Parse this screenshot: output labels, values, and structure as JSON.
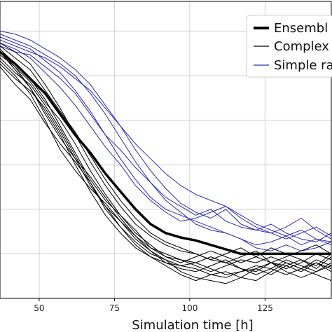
{
  "chart_data": {
    "type": "line",
    "title": "",
    "xlabel": "Simulation time [h]",
    "ylabel": "",
    "xlim": [
      37,
      147
    ],
    "ylim": [
      0,
      1
    ],
    "x_ticks": [
      50,
      75,
      100,
      125
    ],
    "x_tick_labels": [
      "50",
      "75",
      "100",
      "125"
    ],
    "grid": true,
    "legend": {
      "placement": "top-right",
      "entries": [
        {
          "label": "Ensembl",
          "color": "#000000",
          "style": "thick"
        },
        {
          "label": "Complex",
          "color": "#000000",
          "style": "thin"
        },
        {
          "label": "Simple ra",
          "color": "#2a2ab5",
          "style": "thin"
        }
      ]
    },
    "colors": {
      "ensemble": "#000000",
      "complex": "#000000",
      "simple": "#2a2ab5",
      "grid": "#d0d0d0"
    },
    "x": [
      37,
      42,
      47,
      52,
      57,
      62,
      67,
      72,
      77,
      82,
      87,
      92,
      97,
      102,
      107,
      112,
      117,
      122,
      127,
      132,
      137,
      142,
      147
    ],
    "ensemble": {
      "name": "Ensembl",
      "values": [
        0.83,
        0.79,
        0.74,
        0.69,
        0.62,
        0.55,
        0.49,
        0.42,
        0.36,
        0.3,
        0.25,
        0.22,
        0.205,
        0.195,
        0.18,
        0.165,
        0.15,
        0.15,
        0.15,
        0.15,
        0.15,
        0.15,
        0.15
      ]
    },
    "complex_series": [
      {
        "values": [
          0.83,
          0.77,
          0.71,
          0.63,
          0.55,
          0.45,
          0.36,
          0.28,
          0.22,
          0.17,
          0.14,
          0.12,
          0.11,
          0.1,
          0.08,
          0.07,
          0.09,
          0.1,
          0.08,
          0.11,
          0.09,
          0.12,
          0.1
        ]
      },
      {
        "values": [
          0.8,
          0.75,
          0.69,
          0.6,
          0.5,
          0.43,
          0.37,
          0.32,
          0.26,
          0.21,
          0.16,
          0.12,
          0.1,
          0.09,
          0.11,
          0.13,
          0.1,
          0.08,
          0.1,
          0.13,
          0.11,
          0.09,
          0.12
        ]
      },
      {
        "values": [
          0.84,
          0.79,
          0.74,
          0.67,
          0.58,
          0.49,
          0.4,
          0.33,
          0.28,
          0.23,
          0.17,
          0.15,
          0.13,
          0.12,
          0.14,
          0.12,
          0.1,
          0.09,
          0.12,
          0.11,
          0.13,
          0.1,
          0.14
        ]
      },
      {
        "values": [
          0.86,
          0.83,
          0.79,
          0.72,
          0.64,
          0.55,
          0.46,
          0.38,
          0.31,
          0.25,
          0.21,
          0.18,
          0.16,
          0.15,
          0.13,
          0.12,
          0.14,
          0.16,
          0.12,
          0.1,
          0.12,
          0.15,
          0.13
        ]
      },
      {
        "values": [
          0.78,
          0.72,
          0.67,
          0.59,
          0.52,
          0.46,
          0.39,
          0.31,
          0.24,
          0.19,
          0.15,
          0.13,
          0.09,
          0.07,
          0.06,
          0.05,
          0.07,
          0.1,
          0.12,
          0.09,
          0.07,
          0.09,
          0.11
        ]
      },
      {
        "values": [
          0.82,
          0.78,
          0.73,
          0.66,
          0.6,
          0.52,
          0.43,
          0.35,
          0.28,
          0.22,
          0.18,
          0.14,
          0.12,
          0.14,
          0.16,
          0.14,
          0.12,
          0.14,
          0.17,
          0.15,
          0.13,
          0.11,
          0.15
        ]
      },
      {
        "values": [
          0.81,
          0.76,
          0.72,
          0.65,
          0.57,
          0.48,
          0.39,
          0.3,
          0.24,
          0.18,
          0.14,
          0.11,
          0.08,
          0.06,
          0.08,
          0.09,
          0.07,
          0.06,
          0.09,
          0.12,
          0.1,
          0.08,
          0.06
        ]
      },
      {
        "values": [
          0.85,
          0.81,
          0.77,
          0.7,
          0.63,
          0.56,
          0.48,
          0.4,
          0.33,
          0.27,
          0.22,
          0.19,
          0.17,
          0.15,
          0.13,
          0.15,
          0.17,
          0.14,
          0.12,
          0.14,
          0.16,
          0.18,
          0.15
        ]
      },
      {
        "values": [
          0.79,
          0.74,
          0.7,
          0.64,
          0.56,
          0.47,
          0.38,
          0.31,
          0.26,
          0.2,
          0.16,
          0.13,
          0.11,
          0.12,
          0.1,
          0.08,
          0.09,
          0.11,
          0.1,
          0.08,
          0.1,
          0.12,
          0.09
        ]
      },
      {
        "values": [
          0.83,
          0.78,
          0.71,
          0.62,
          0.54,
          0.47,
          0.41,
          0.34,
          0.27,
          0.21,
          0.17,
          0.14,
          0.13,
          0.11,
          0.09,
          0.11,
          0.13,
          0.12,
          0.14,
          0.12,
          0.1,
          0.13,
          0.11
        ]
      }
    ],
    "simple_series": [
      {
        "values": [
          0.88,
          0.86,
          0.84,
          0.8,
          0.76,
          0.7,
          0.63,
          0.55,
          0.47,
          0.4,
          0.34,
          0.3,
          0.28,
          0.26,
          0.24,
          0.22,
          0.2,
          0.18,
          0.19,
          0.21,
          0.18,
          0.2,
          0.19
        ]
      },
      {
        "values": [
          0.9,
          0.89,
          0.87,
          0.84,
          0.81,
          0.77,
          0.72,
          0.65,
          0.58,
          0.5,
          0.43,
          0.37,
          0.32,
          0.29,
          0.27,
          0.3,
          0.25,
          0.23,
          0.22,
          0.2,
          0.22,
          0.24,
          0.21
        ]
      },
      {
        "values": [
          0.85,
          0.83,
          0.82,
          0.78,
          0.74,
          0.69,
          0.62,
          0.55,
          0.5,
          0.44,
          0.39,
          0.34,
          0.31,
          0.28,
          0.3,
          0.26,
          0.24,
          0.23,
          0.25,
          0.22,
          0.2,
          0.19,
          0.22
        ]
      },
      {
        "values": [
          0.87,
          0.85,
          0.83,
          0.81,
          0.78,
          0.74,
          0.7,
          0.64,
          0.58,
          0.52,
          0.47,
          0.42,
          0.38,
          0.35,
          0.33,
          0.31,
          0.28,
          0.25,
          0.23,
          0.21,
          0.23,
          0.2,
          0.18
        ]
      },
      {
        "values": [
          0.86,
          0.84,
          0.81,
          0.76,
          0.71,
          0.65,
          0.58,
          0.51,
          0.45,
          0.38,
          0.33,
          0.29,
          0.26,
          0.27,
          0.29,
          0.31,
          0.27,
          0.24,
          0.22,
          0.24,
          0.27,
          0.23,
          0.2
        ]
      },
      {
        "values": [
          0.89,
          0.87,
          0.85,
          0.82,
          0.79,
          0.75,
          0.69,
          0.62,
          0.54,
          0.46,
          0.39,
          0.33,
          0.29,
          0.25,
          0.23,
          0.22,
          0.2,
          0.17,
          0.16,
          0.18,
          0.16,
          0.17,
          0.19
        ]
      }
    ]
  }
}
